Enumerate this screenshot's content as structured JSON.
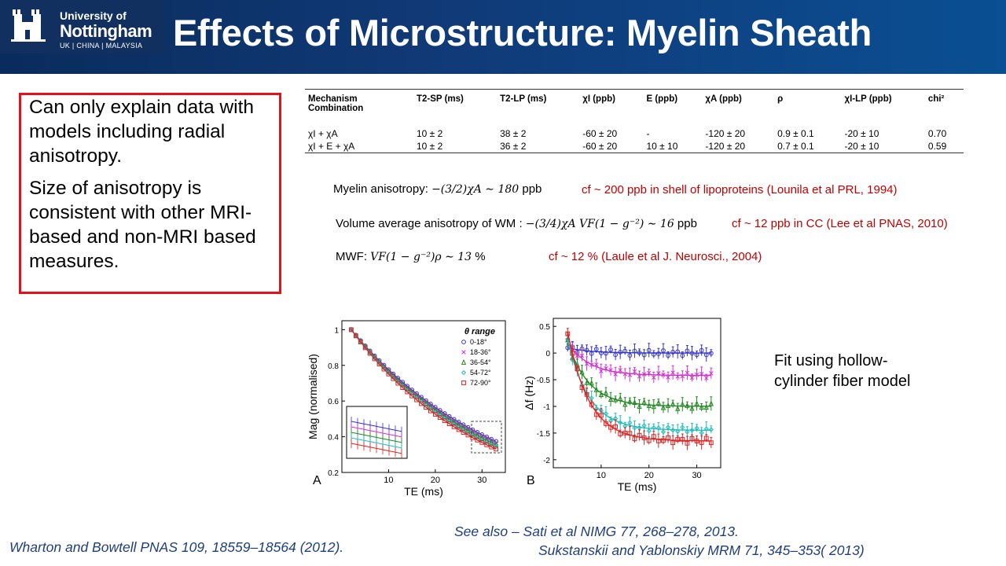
{
  "header": {
    "logo": {
      "line1": "University of",
      "line2": "Nottingham",
      "line3": "UK | CHINA | MALAYSIA"
    },
    "title": "Effects of Microstructure: Myelin Sheath"
  },
  "callout": {
    "paragraph1": "Can only explain data with models including radial anisotropy.",
    "paragraph2": "Size of anisotropy is consistent with other MRI-based and non-MRI based measures."
  },
  "table": {
    "headers": [
      "Mechanism Combination",
      "T2-SP (ms)",
      "T2-LP (ms)",
      "χI (ppb)",
      "E (ppb)",
      "χA (ppb)",
      "ρ",
      "χI-LP (ppb)",
      "chi²"
    ],
    "rows": [
      [
        "χI + χA",
        "10 ± 2",
        "38 ± 2",
        "-60 ± 20",
        "-",
        "-120 ± 20",
        "0.9 ± 0.1",
        "-20 ± 10",
        "0.70"
      ],
      [
        "χI + E + χA",
        "10 ± 2",
        "36 ± 2",
        "-60 ± 20",
        "10 ± 10",
        "-120 ± 20",
        "0.7 ± 0.1",
        "-20 ± 10",
        "0.59"
      ]
    ]
  },
  "equations": {
    "myelin_label": "Myelin anisotropy:",
    "myelin_eq": "−(3/2)χA ∼ 180",
    "myelin_unit": "ppb",
    "wm_label": "Volume average anisotropy of WM :",
    "wm_eq": "−(3/4)χA VF(1 − g⁻²) ∼ 16",
    "wm_unit": "ppb",
    "mwf_label": "MWF:",
    "mwf_eq": "VF(1 − g⁻²)ρ ∼ 13",
    "mwf_unit": "%"
  },
  "citations": {
    "myelin": "cf ~ 200 ppb in shell of lipoproteins   (Lounila et al PRL, 1994)",
    "wm": "cf ~ 12 ppb in CC (Lee et al PNAS, 2010)",
    "mwf": "cf ~ 12 % (Laule  et al J. Neurosci., 2004)"
  },
  "figure": {
    "panel_a_letter": "A",
    "panel_b_letter": "B",
    "legend_title": "θ range",
    "legend_items": [
      "0-18°",
      "18-36°",
      "36-54°",
      "54-72°",
      "72-90°"
    ],
    "series_colors": [
      "#3333cc",
      "#cc33cc",
      "#228822",
      "#22bbbb",
      "#dd2222"
    ]
  },
  "chart_data": [
    {
      "type": "line",
      "title": "",
      "xlabel": "TE (ms)",
      "ylabel": "Mag (normalised)",
      "xlim": [
        0,
        35
      ],
      "ylim": [
        0.2,
        1.05
      ],
      "xticks": [
        "10",
        "20",
        "30"
      ],
      "yticks": [
        "0.2",
        "0.4",
        "0.6",
        "0.8",
        "1"
      ],
      "x": [
        2,
        3,
        4,
        5,
        6,
        7,
        8,
        9,
        10,
        11,
        12,
        13,
        14,
        15,
        16,
        17,
        18,
        19,
        20,
        21,
        22,
        23,
        24,
        25,
        26,
        27,
        28,
        29,
        30,
        31,
        32,
        33
      ],
      "series": [
        {
          "name": "0-18°",
          "k": 0.0317
        },
        {
          "name": "18-36°",
          "k": 0.0325
        },
        {
          "name": "36-54°",
          "k": 0.0333
        },
        {
          "name": "54-72°",
          "k": 0.0345
        },
        {
          "name": "72-90°",
          "k": 0.0357
        }
      ],
      "model": "y = exp(-k (x - 2))",
      "legend": "top-right"
    },
    {
      "type": "line",
      "title": "",
      "xlabel": "TE (ms)",
      "ylabel": "Δf (Hz)",
      "xlim": [
        0,
        35
      ],
      "ylim": [
        -2.15,
        0.65
      ],
      "xticks": [
        "10",
        "20",
        "30"
      ],
      "yticks": [
        "0.5",
        "0",
        "-0.5",
        "-1",
        "-1.5",
        "-2"
      ],
      "x": [
        3,
        4,
        5,
        6,
        7,
        8,
        9,
        10,
        11,
        12,
        13,
        14,
        15,
        16,
        17,
        18,
        19,
        20,
        21,
        22,
        23,
        24,
        25,
        26,
        27,
        28,
        29,
        30,
        31,
        32,
        33
      ],
      "series": [
        {
          "name": "0-18°",
          "asymptote": 0.0,
          "start": 0.1
        },
        {
          "name": "18-36°",
          "asymptote": -0.42,
          "start": 0.2
        },
        {
          "name": "36-54°",
          "asymptote": -1.0,
          "start": 0.2
        },
        {
          "name": "54-72°",
          "asymptote": -1.45,
          "start": 0.25
        },
        {
          "name": "72-90°",
          "asymptote": -1.65,
          "start": 0.4
        }
      ],
      "model": "y = asymptote + (start - asymptote) exp(-(x - 3)/4.5)"
    }
  ],
  "fit_note": "Fit using hollow-cylinder fiber model",
  "refs": {
    "wharton": "Wharton and Bowtell PNAS 109, 18559–18564 (2012).",
    "see_also_1": "See also – Sati et al NIMG 77, 268–278, 2013.",
    "see_also_2": "Sukstanskii and Yablonskiy MRM 71, 345–353( 2013)"
  }
}
